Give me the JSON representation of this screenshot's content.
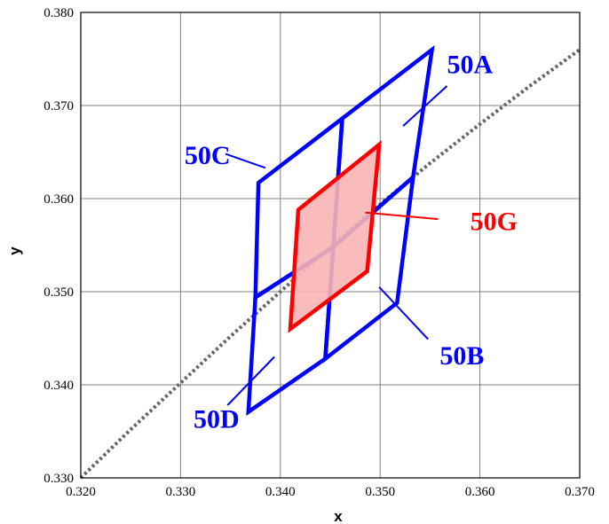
{
  "chart_data": {
    "type": "line",
    "title": "",
    "xlabel": "x",
    "ylabel": "y",
    "xlim": [
      0.32,
      0.37
    ],
    "ylim": [
      0.33,
      0.38
    ],
    "grid": true,
    "xticks": [
      "0.320",
      "0.330",
      "0.340",
      "0.350",
      "0.360",
      "0.370"
    ],
    "yticks": [
      "0.330",
      "0.340",
      "0.350",
      "0.360",
      "0.370",
      "0.380"
    ],
    "colors": {
      "blue": "#0000ff",
      "red": "#ff0000",
      "fill_red": "#f8b4b4",
      "curve": "#666666",
      "grid": "#808080"
    },
    "curve": {
      "style": "dotted",
      "x": [
        0.32,
        0.325,
        0.33,
        0.335,
        0.34,
        0.345,
        0.35,
        0.355,
        0.36,
        0.365,
        0.37
      ],
      "y": [
        0.33,
        0.3352,
        0.3402,
        0.3452,
        0.35,
        0.3548,
        0.3594,
        0.3638,
        0.368,
        0.3721,
        0.376
      ]
    },
    "regions": [
      {
        "name": "50A",
        "color": "#0000ff",
        "vertices": [
          [
            0.3453,
            0.3548
          ],
          [
            0.3462,
            0.3686
          ],
          [
            0.3552,
            0.376
          ],
          [
            0.3533,
            0.3623
          ]
        ]
      },
      {
        "name": "50B",
        "color": "#0000ff",
        "vertices": [
          [
            0.3445,
            0.3428
          ],
          [
            0.3453,
            0.3548
          ],
          [
            0.3533,
            0.3623
          ],
          [
            0.3517,
            0.3488
          ]
        ]
      },
      {
        "name": "50C",
        "color": "#0000ff",
        "vertices": [
          [
            0.3375,
            0.3494
          ],
          [
            0.3378,
            0.3617
          ],
          [
            0.3462,
            0.3686
          ],
          [
            0.3453,
            0.3548
          ]
        ]
      },
      {
        "name": "50D",
        "color": "#0000ff",
        "vertices": [
          [
            0.3368,
            0.3371
          ],
          [
            0.3375,
            0.3494
          ],
          [
            0.3453,
            0.3548
          ],
          [
            0.3445,
            0.3428
          ]
        ]
      },
      {
        "name": "50G",
        "color": "#ff0000",
        "filled": true,
        "vertices": [
          [
            0.341,
            0.346
          ],
          [
            0.3418,
            0.3588
          ],
          [
            0.3499,
            0.3658
          ],
          [
            0.3487,
            0.3522
          ]
        ]
      }
    ],
    "annotations": [
      {
        "text": "50A",
        "color": "#0000ff",
        "label_at": [
          0.359,
          0.3735
        ],
        "leader": [
          [
            0.3567,
            0.3721
          ],
          [
            0.3523,
            0.3678
          ]
        ]
      },
      {
        "text": "50B",
        "color": "#0000ff",
        "label_at": [
          0.3582,
          0.3422
        ],
        "leader": [
          [
            0.3548,
            0.3449
          ],
          [
            0.3499,
            0.3505
          ]
        ]
      },
      {
        "text": "50C",
        "color": "#0000ff",
        "label_at": [
          0.3327,
          0.3637
        ],
        "leader": [
          [
            0.3345,
            0.3648
          ],
          [
            0.3385,
            0.3633
          ]
        ]
      },
      {
        "text": "50D",
        "color": "#0000ff",
        "label_at": [
          0.3336,
          0.3354
        ],
        "leader": [
          [
            0.3347,
            0.3378
          ],
          [
            0.3394,
            0.343
          ]
        ]
      },
      {
        "text": "50G",
        "color": "#ff0000",
        "label_at": [
          0.3614,
          0.3566
        ],
        "leader": [
          [
            0.3558,
            0.3578
          ],
          [
            0.3485,
            0.3585
          ]
        ]
      }
    ]
  }
}
